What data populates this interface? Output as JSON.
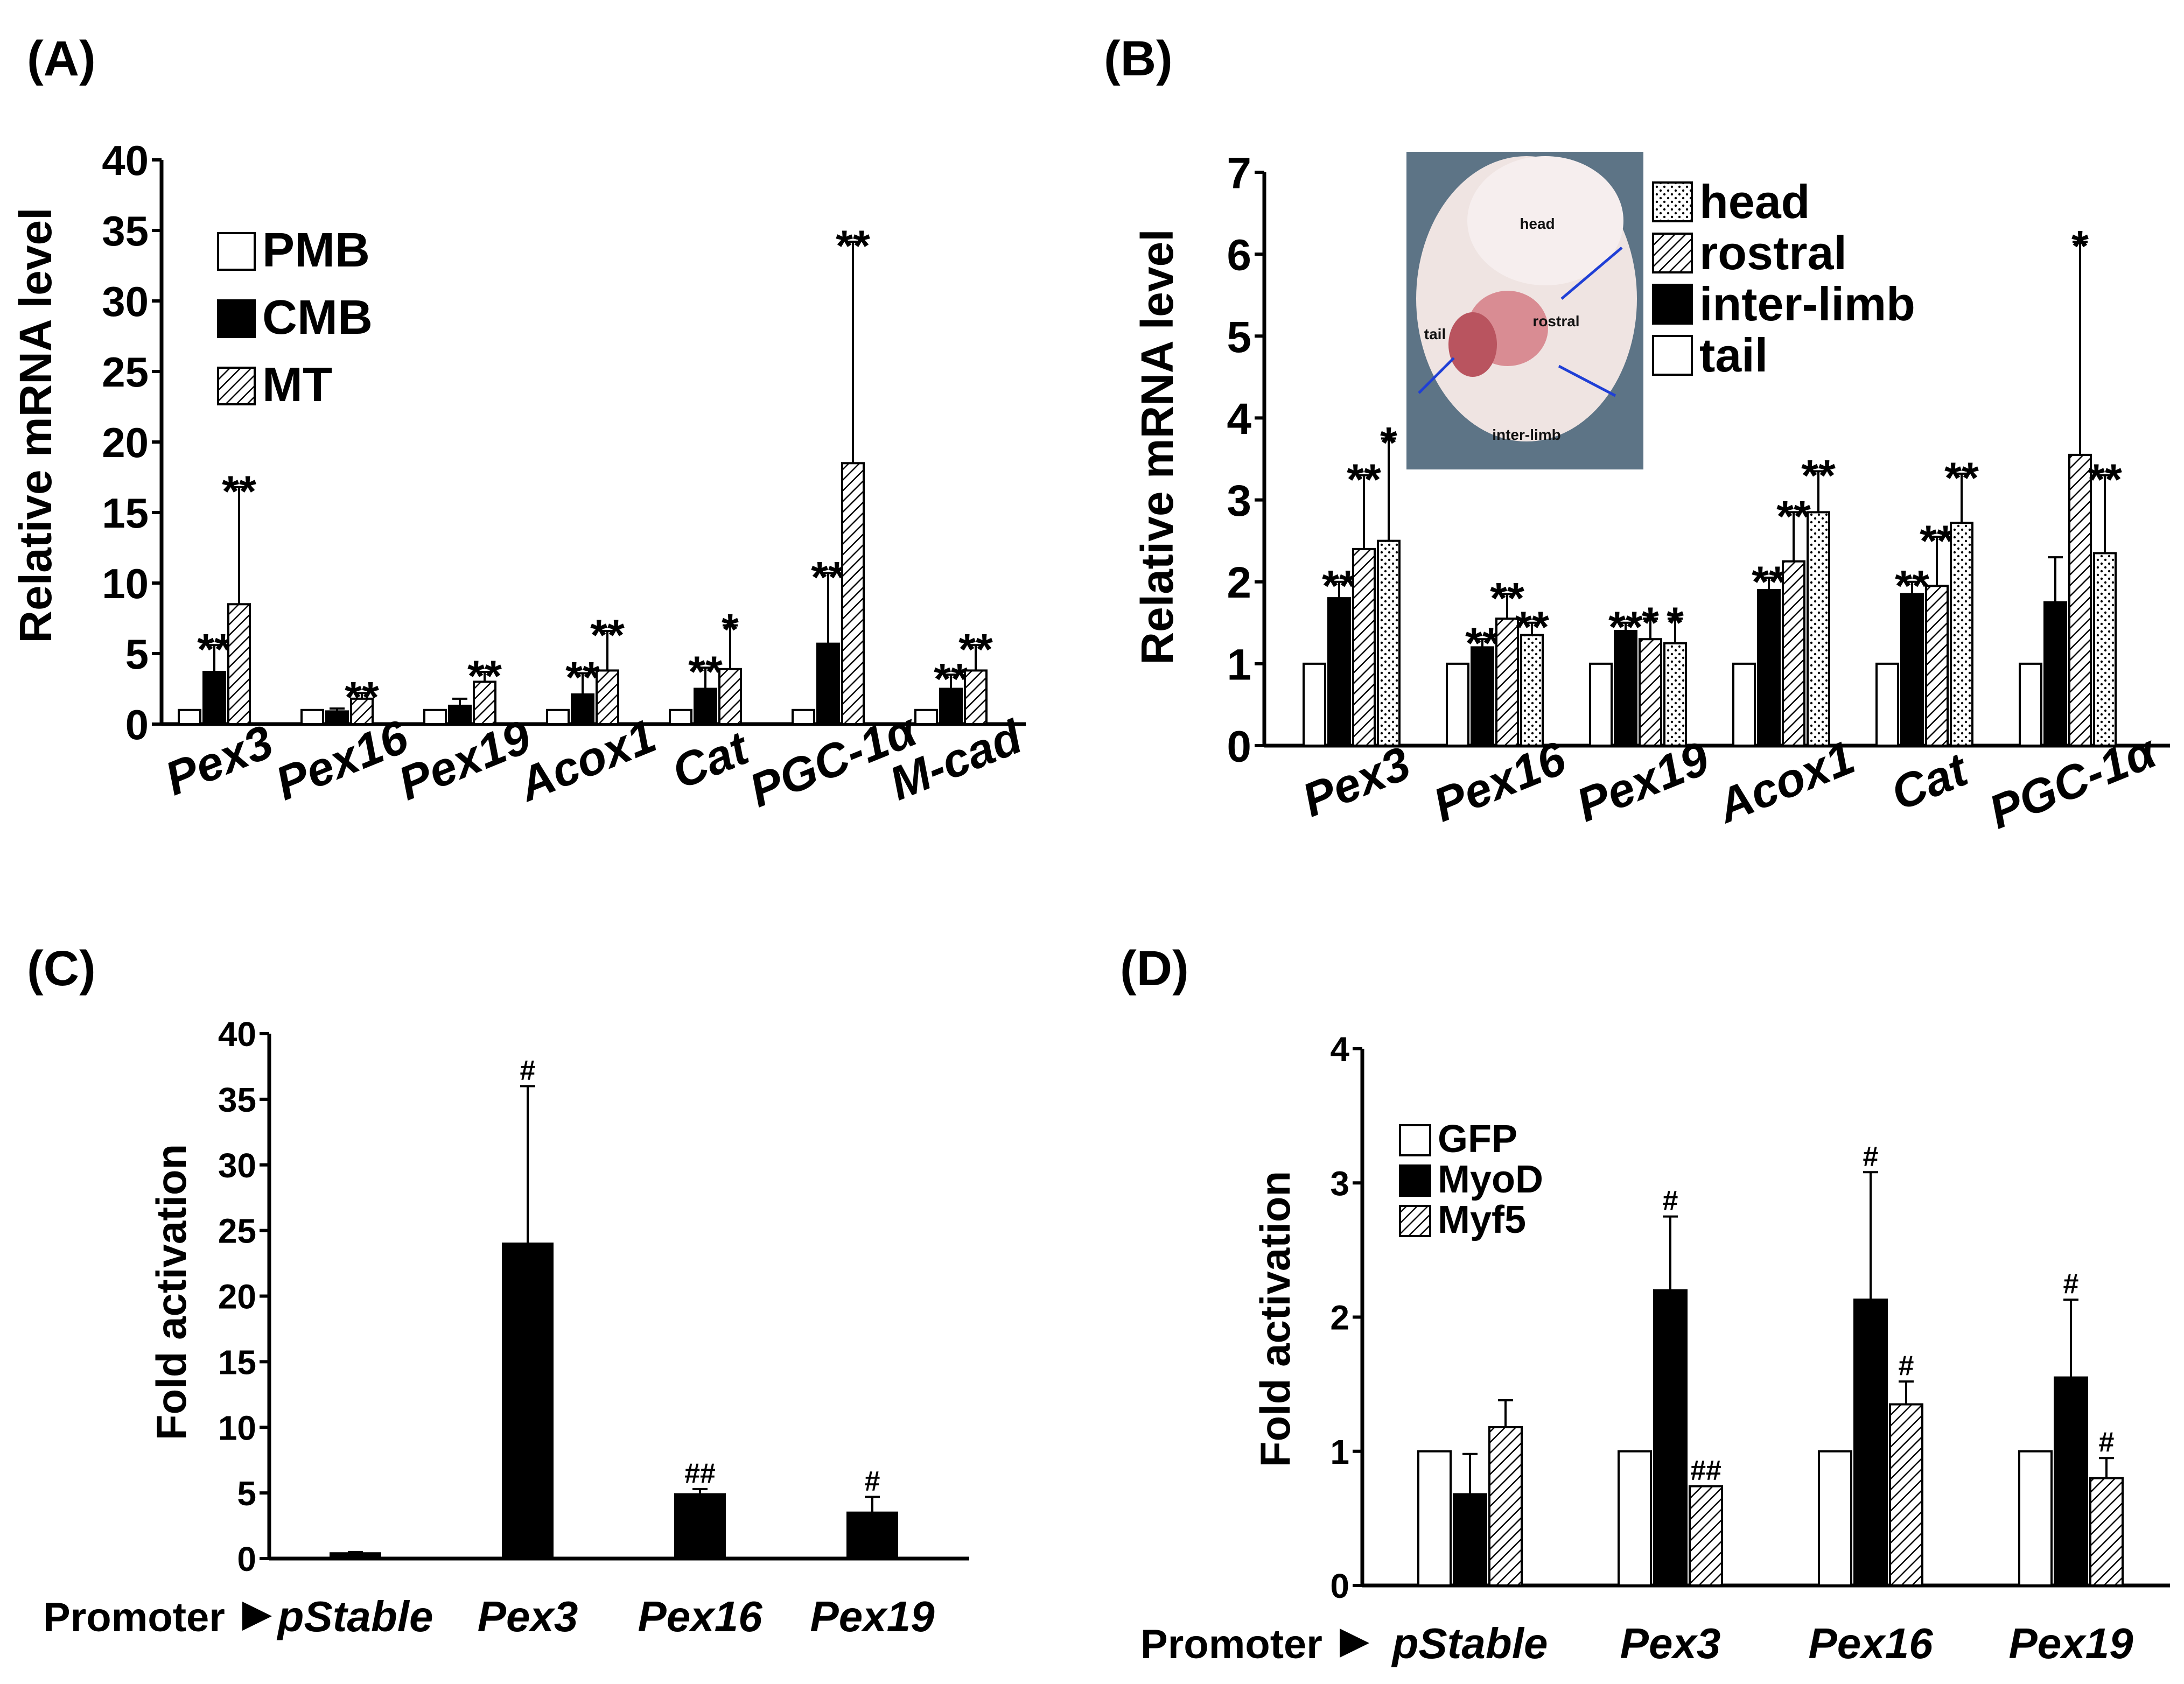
{
  "figure": {
    "patterns": {
      "white": "#ffffff",
      "black": "#000000",
      "hatch": "hatch",
      "dots": "dots"
    },
    "chart_data": [
      {
        "id": "A",
        "panel_label": "(A)",
        "type": "bar",
        "ylabel": "Relative mRNA level",
        "ylim": [
          0,
          40
        ],
        "yticks": [
          0,
          5,
          10,
          15,
          20,
          25,
          30,
          35,
          40
        ],
        "categories": [
          "Pex3",
          "Pex16",
          "Pex19",
          "Acox1",
          "Cat",
          "PGC-1α",
          "M-cad"
        ],
        "category_style": "italic",
        "series": [
          {
            "name": "PMB",
            "fill": "white",
            "values": [
              1,
              1,
              1,
              1,
              1,
              1,
              1
            ],
            "err": [
              0,
              0,
              0,
              0,
              0,
              0,
              0
            ],
            "sig": [
              "",
              "",
              "",
              "",
              "",
              "",
              ""
            ]
          },
          {
            "name": "CMB",
            "fill": "black",
            "values": [
              3.7,
              0.9,
              1.3,
              2.1,
              2.5,
              5.7,
              2.5
            ],
            "err": [
              1.9,
              0.2,
              0.5,
              1.5,
              1.5,
              5.0,
              1.0
            ],
            "sig": [
              "**",
              "",
              "",
              "**",
              "**",
              "**",
              "**"
            ]
          },
          {
            "name": "MT",
            "fill": "hatch",
            "values": [
              8.5,
              1.8,
              3.0,
              3.8,
              3.9,
              18.5,
              3.8
            ],
            "err": [
              8.3,
              0.4,
              0.7,
              2.8,
              3.1,
              15.7,
              1.8
            ],
            "sig": [
              "**",
              "**",
              "**",
              "**",
              "*",
              "**",
              "**"
            ]
          }
        ],
        "legend_position": "upper-left"
      },
      {
        "id": "B",
        "panel_label": "(B)",
        "type": "bar",
        "ylabel": "Relative mRNA level",
        "ylim": [
          0,
          7
        ],
        "yticks": [
          0,
          1,
          2,
          3,
          4,
          5,
          6,
          7
        ],
        "categories": [
          "Pex3",
          "Pex16",
          "Pex19",
          "Acox1",
          "Cat",
          "PGC-1α"
        ],
        "category_style": "italic",
        "series": [
          {
            "name": "tail",
            "fill": "white",
            "values": [
              1,
              1,
              1,
              1,
              1,
              1
            ],
            "err": [
              0,
              0,
              0,
              0,
              0,
              0
            ],
            "sig": [
              "",
              "",
              "",
              "",
              "",
              ""
            ]
          },
          {
            "name": "inter-limb",
            "fill": "black",
            "values": [
              1.8,
              1.2,
              1.4,
              1.9,
              1.85,
              1.75
            ],
            "err": [
              0.2,
              0.1,
              0.1,
              0.15,
              0.15,
              0.55
            ],
            "sig": [
              "**",
              "**",
              "**",
              "**",
              "**",
              ""
            ]
          },
          {
            "name": "rostral",
            "fill": "hatch",
            "values": [
              2.4,
              1.55,
              1.3,
              2.25,
              1.95,
              3.55
            ],
            "err": [
              0.9,
              0.3,
              0.25,
              0.6,
              0.6,
              2.6
            ],
            "sig": [
              "**",
              "**",
              "*",
              "**",
              "**",
              "*"
            ]
          },
          {
            "name": "head",
            "fill": "dots",
            "values": [
              2.5,
              1.35,
              1.25,
              2.85,
              2.72,
              2.35
            ],
            "err": [
              1.25,
              0.15,
              0.3,
              0.5,
              0.6,
              0.95
            ],
            "sig": [
              "*",
              "**",
              "*",
              "**",
              "**",
              "**"
            ]
          }
        ],
        "legend": [
          "head",
          "rostral",
          "inter-limb",
          "tail"
        ],
        "legend_position": "upper-right",
        "inset_image": {
          "description_labels": [
            "head",
            "rostral",
            "tail",
            "inter-limb"
          ]
        }
      },
      {
        "id": "C",
        "panel_label": "(C)",
        "type": "bar",
        "ylabel": "Fold activation",
        "ylim": [
          0,
          40
        ],
        "yticks": [
          0,
          5,
          10,
          15,
          20,
          25,
          30,
          35,
          40
        ],
        "x_prefix": "Promoter",
        "categories": [
          "pStable",
          "Pex3",
          "Pex16",
          "Pex19"
        ],
        "category_style": "bold-italic",
        "series": [
          {
            "name": "",
            "fill": "black",
            "values": [
              0.4,
              24.0,
              4.9,
              3.5
            ],
            "err": [
              0.1,
              12.0,
              0.4,
              1.2
            ],
            "sig": [
              "",
              "#",
              "##",
              "#"
            ]
          }
        ]
      },
      {
        "id": "D",
        "panel_label": "(D)",
        "type": "bar",
        "ylabel": "Fold activation",
        "ylim": [
          0,
          4
        ],
        "yticks": [
          0,
          1,
          2,
          3,
          4
        ],
        "x_prefix": "Promoter",
        "categories": [
          "pStable",
          "Pex3",
          "Pex16",
          "Pex19"
        ],
        "category_style": "bold-italic",
        "series": [
          {
            "name": "GFP",
            "fill": "white",
            "values": [
              1,
              1,
              1,
              1
            ],
            "err": [
              0,
              0,
              0,
              0
            ],
            "sig": [
              "",
              "",
              "",
              ""
            ]
          },
          {
            "name": "MyoD",
            "fill": "black",
            "values": [
              0.68,
              2.2,
              2.13,
              1.55
            ],
            "err": [
              0.3,
              0.55,
              0.95,
              0.58
            ],
            "sig": [
              "",
              "#",
              "#",
              "#"
            ]
          },
          {
            "name": "Myf5",
            "fill": "hatch",
            "values": [
              1.18,
              0.74,
              1.35,
              0.8
            ],
            "err": [
              0.2,
              0,
              0.17,
              0.15
            ],
            "sig": [
              "",
              "##",
              "#",
              "#"
            ]
          }
        ],
        "legend_position": "upper-left"
      }
    ]
  }
}
